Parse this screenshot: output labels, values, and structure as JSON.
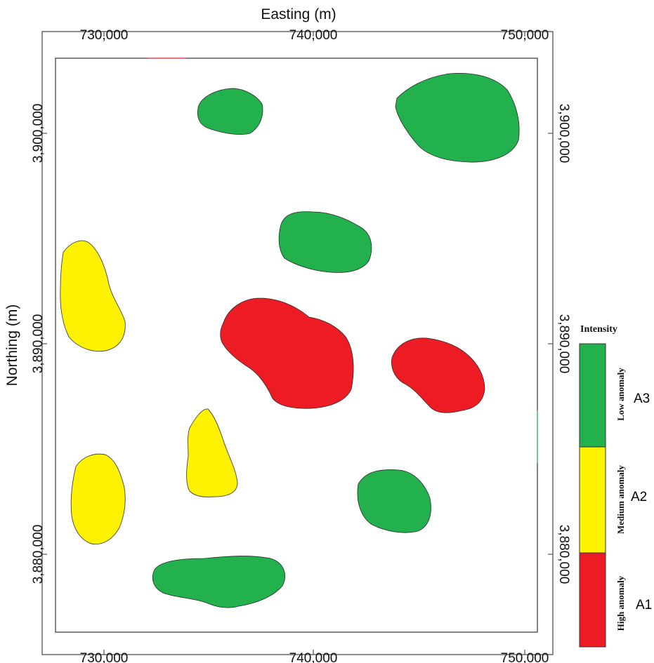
{
  "map": {
    "x_axis_title": "Easting (m)",
    "y_axis_title": "Northing (m)",
    "x_ticks": [
      {
        "value": 730000,
        "label": "730,000"
      },
      {
        "value": 740000,
        "label": "740,000"
      },
      {
        "value": 750000,
        "label": "750,000"
      }
    ],
    "y_ticks": [
      {
        "value": 3900000,
        "label": "3,900,000"
      },
      {
        "value": 3890000,
        "label": "3,890,000"
      },
      {
        "value": 3880000,
        "label": "3,880,000"
      }
    ],
    "colors": {
      "low": "#22b14c",
      "medium": "#fff200",
      "high": "#ed1c24"
    }
  },
  "legend": {
    "title": "Intensity",
    "items": [
      {
        "code": "A3",
        "label": "Low anomaly",
        "color": "#22b14c"
      },
      {
        "code": "A2",
        "label": "Medium anomaly",
        "color": "#fff200"
      },
      {
        "code": "A1",
        "label": "High anomaly",
        "color": "#ed1c24"
      }
    ]
  }
}
